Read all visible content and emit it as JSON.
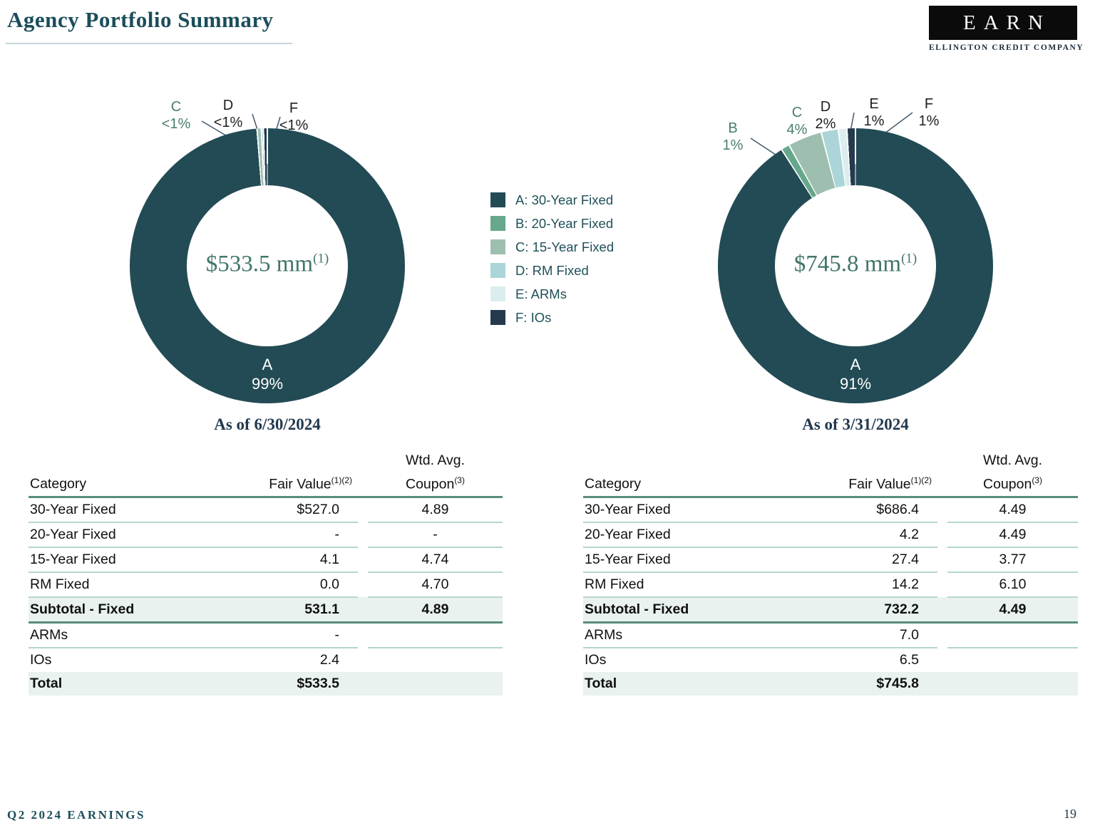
{
  "header": {
    "title": "Agency Portfolio Summary",
    "logo_text": "EARN",
    "logo_subtext": "ELLINGTON CREDIT COMPANY"
  },
  "footer": {
    "left": "Q2 2024 EARNINGS",
    "page": "19"
  },
  "colors": {
    "A": "#234B55",
    "B": "#67A78B",
    "C": "#9EBFAF",
    "D": "#ABD5D8",
    "E": "#DCEDEF",
    "F": "#263A4E",
    "accent_line": "#5A8C7E",
    "row_separator": "#B5D6D0",
    "highlight_row_bg": "#E9F2EF",
    "center_text": "#41756A",
    "title_text": "#1B4D5B",
    "leader_line": "#44586B"
  },
  "legend": {
    "items": [
      {
        "key": "A",
        "label": "A: 30-Year Fixed",
        "color": "#234B55"
      },
      {
        "key": "B",
        "label": "B: 20-Year Fixed",
        "color": "#67A78B"
      },
      {
        "key": "C",
        "label": "C: 15-Year Fixed",
        "color": "#9EBFAF"
      },
      {
        "key": "D",
        "label": "D: RM Fixed",
        "color": "#ABD5D8"
      },
      {
        "key": "E",
        "label": "E: ARMs",
        "color": "#DCEDEF"
      },
      {
        "key": "F",
        "label": "F: IOs",
        "color": "#263A4E"
      }
    ]
  },
  "chart_data": [
    {
      "type": "pie",
      "as_of": "As of 6/30/2024",
      "center_value": "$533.5 mm",
      "center_note": "(1)",
      "donut_label": {
        "key": "A",
        "pct": "99%"
      },
      "slices": [
        {
          "key": "A",
          "name": "30-Year Fixed",
          "pct_label": "99%",
          "pct": 98.8,
          "color": "#234B55"
        },
        {
          "key": "C",
          "name": "15-Year Fixed",
          "pct_label": "<1%",
          "pct": 0.5,
          "color": "#9EBFAF"
        },
        {
          "key": "D",
          "name": "RM Fixed",
          "pct_label": "<1%",
          "pct": 0.25,
          "color": "#ABD5D8"
        },
        {
          "key": "F",
          "name": "IOs",
          "pct_label": "<1%",
          "pct": 0.45,
          "color": "#263A4E"
        }
      ],
      "callouts": [
        {
          "key": "C",
          "value": "<1%",
          "tone": "green"
        },
        {
          "key": "D",
          "value": "<1%",
          "tone": "dark"
        },
        {
          "key": "F",
          "value": "<1%",
          "tone": "dark"
        }
      ]
    },
    {
      "type": "pie",
      "as_of": "As of 3/31/2024",
      "center_value": "$745.8 mm",
      "center_note": "(1)",
      "donut_label": {
        "key": "A",
        "pct": "91%"
      },
      "slices": [
        {
          "key": "A",
          "name": "30-Year Fixed",
          "pct_label": "91%",
          "pct": 91,
          "color": "#234B55"
        },
        {
          "key": "B",
          "name": "20-Year Fixed",
          "pct_label": "1%",
          "pct": 1,
          "color": "#67A78B"
        },
        {
          "key": "C",
          "name": "15-Year Fixed",
          "pct_label": "4%",
          "pct": 4,
          "color": "#9EBFAF"
        },
        {
          "key": "D",
          "name": "RM Fixed",
          "pct_label": "2%",
          "pct": 2,
          "color": "#ABD5D8"
        },
        {
          "key": "E",
          "name": "ARMs",
          "pct_label": "1%",
          "pct": 1,
          "color": "#DCEDEF"
        },
        {
          "key": "F",
          "name": "IOs",
          "pct_label": "1%",
          "pct": 1,
          "color": "#263A4E"
        }
      ],
      "callouts": [
        {
          "key": "B",
          "value": "1%",
          "tone": "green"
        },
        {
          "key": "C",
          "value": "4%",
          "tone": "green"
        },
        {
          "key": "D",
          "value": "2%",
          "tone": "dark"
        },
        {
          "key": "E",
          "value": "1%",
          "tone": "dark"
        },
        {
          "key": "F",
          "value": "1%",
          "tone": "dark"
        }
      ]
    }
  ],
  "tables": [
    {
      "headers": {
        "wtd_avg": "Wtd. Avg.",
        "category": "Category",
        "fair_value": "Fair Value",
        "fair_value_sup": "(1)(2)",
        "coupon": "Coupon",
        "coupon_sup": "(3)"
      },
      "rows": [
        {
          "kind": "data",
          "sep": true,
          "category": "30-Year Fixed",
          "fair_value": "$527.0",
          "coupon": "4.89"
        },
        {
          "kind": "data",
          "sep": true,
          "category": "20-Year Fixed",
          "fair_value": "-",
          "coupon": "-"
        },
        {
          "kind": "data",
          "sep": true,
          "category": "15-Year Fixed",
          "fair_value": "4.1",
          "coupon": "4.74"
        },
        {
          "kind": "data",
          "sep": true,
          "category": "RM Fixed",
          "fair_value": "0.0",
          "coupon": "4.70"
        },
        {
          "kind": "subtotal",
          "sep": false,
          "category": "Subtotal - Fixed",
          "fair_value": "531.1",
          "coupon": "4.89"
        },
        {
          "kind": "data",
          "sep": true,
          "category": "ARMs",
          "fair_value": "-",
          "coupon": ""
        },
        {
          "kind": "data",
          "sep": false,
          "category": "IOs",
          "fair_value": "2.4",
          "coupon": ""
        },
        {
          "kind": "total",
          "sep": false,
          "category": "Total",
          "fair_value": "$533.5",
          "coupon": ""
        }
      ]
    },
    {
      "headers": {
        "wtd_avg": "Wtd. Avg.",
        "category": "Category",
        "fair_value": "Fair Value",
        "fair_value_sup": "(1)(2)",
        "coupon": "Coupon",
        "coupon_sup": "(3)"
      },
      "rows": [
        {
          "kind": "data",
          "sep": true,
          "category": "30-Year Fixed",
          "fair_value": "$686.4",
          "coupon": "4.49"
        },
        {
          "kind": "data",
          "sep": true,
          "category": "20-Year Fixed",
          "fair_value": "4.2",
          "coupon": "4.49"
        },
        {
          "kind": "data",
          "sep": true,
          "category": "15-Year Fixed",
          "fair_value": "27.4",
          "coupon": "3.77"
        },
        {
          "kind": "data",
          "sep": true,
          "category": "RM Fixed",
          "fair_value": "14.2",
          "coupon": "6.10"
        },
        {
          "kind": "subtotal",
          "sep": false,
          "category": "Subtotal - Fixed",
          "fair_value": "732.2",
          "coupon": "4.49"
        },
        {
          "kind": "data",
          "sep": true,
          "category": "ARMs",
          "fair_value": "7.0",
          "coupon": ""
        },
        {
          "kind": "data",
          "sep": false,
          "category": "IOs",
          "fair_value": "6.5",
          "coupon": ""
        },
        {
          "kind": "total",
          "sep": false,
          "category": "Total",
          "fair_value": "$745.8",
          "coupon": ""
        }
      ]
    }
  ]
}
